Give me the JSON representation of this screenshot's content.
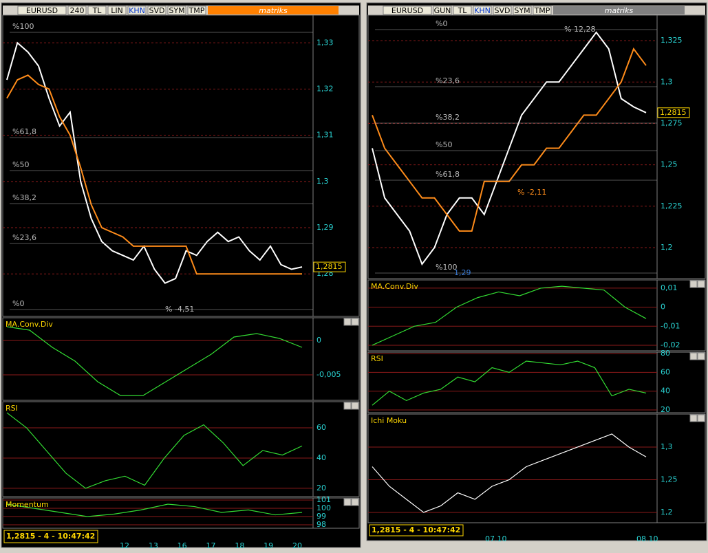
{
  "left": {
    "toolbar": {
      "symbol": "EURUSD",
      "period": "240",
      "buttons": [
        "TL",
        "LIN",
        "KHN",
        "SVD",
        "SYM",
        "TMP"
      ],
      "brand": "matriks"
    },
    "main": {
      "ylim": [
        1.2708,
        1.336
      ],
      "yticks": [
        {
          "value": 1.33,
          "label": "1,33"
        },
        {
          "value": 1.32,
          "label": "1,32"
        },
        {
          "value": 1.31,
          "label": "1,31"
        },
        {
          "value": 1.3,
          "label": "1,3"
        },
        {
          "value": 1.29,
          "label": "1,29"
        },
        {
          "value": 1.28,
          "label": "1,28"
        }
      ],
      "series": [
        {
          "color": "#ffffff",
          "values": [
            1.322,
            1.33,
            1.328,
            1.325,
            1.318,
            1.312,
            1.315,
            1.3,
            1.292,
            1.287,
            1.285,
            1.284,
            1.283,
            1.286,
            1.281,
            1.278,
            1.279,
            1.285,
            1.284,
            1.287,
            1.289,
            1.287,
            1.288,
            1.285,
            1.283,
            1.286,
            1.282,
            1.281,
            1.2815
          ]
        },
        {
          "color": "#ff8c1a",
          "values": [
            1.318,
            1.322,
            1.323,
            1.321,
            1.32,
            1.314,
            1.31,
            1.303,
            1.295,
            1.29,
            1.289,
            1.288,
            1.286,
            1.286,
            1.286,
            1.286,
            1.286,
            1.286,
            1.28,
            1.28,
            1.28,
            1.28,
            1.28,
            1.28,
            1.28,
            1.28,
            1.28,
            1.28,
            1.28
          ]
        }
      ],
      "price": "1,2815",
      "fib": [
        "%100",
        "%61,8",
        "%50",
        "%38,2",
        "%23,6",
        "%0"
      ],
      "annotation": "% -4,51"
    },
    "macd": {
      "title": "MA.Conv.Div",
      "ylim": [
        -0.0087,
        0.0033
      ],
      "yticks": [
        {
          "value": 0,
          "label": "0"
        },
        {
          "value": -0.005,
          "label": "-0,005"
        }
      ],
      "series": [
        {
          "color": "#33dd33",
          "values": [
            0.002,
            0.0015,
            -0.001,
            -0.003,
            -0.006,
            -0.008,
            -0.008,
            -0.006,
            -0.004,
            -0.002,
            0.0005,
            0.001,
            0.0003,
            -0.001
          ]
        }
      ]
    },
    "rsi": {
      "title": "RSI",
      "ylim": [
        14.5,
        77.3
      ],
      "yticks": [
        60,
        40,
        20
      ],
      "series": [
        {
          "color": "#33dd33",
          "values": [
            70,
            60,
            45,
            30,
            20,
            25,
            28,
            22,
            40,
            55,
            62,
            50,
            35,
            45,
            42,
            48
          ]
        }
      ]
    },
    "momentum": {
      "title": "Momentum",
      "ylim": [
        97.58,
        101.25
      ],
      "yticks": [
        101,
        100,
        99,
        98
      ],
      "series": [
        {
          "color": "#33dd33",
          "values": [
            100.5,
            100,
            99.5,
            99,
            99.3,
            99.8,
            100.5,
            100.2,
            99.5,
            99.8,
            99.2,
            99.5
          ]
        }
      ]
    },
    "status": "1,2815 - 4 - 10:47:42",
    "dates": [
      "12",
      "13",
      "16",
      "17",
      "18",
      "19",
      "20"
    ]
  },
  "right": {
    "toolbar": {
      "symbol": "EURUSD",
      "period": "GUN",
      "buttons": [
        "TL",
        "KHN",
        "SVD",
        "SYM",
        "TMP"
      ],
      "brand": "matriks"
    },
    "main": {
      "ylim": [
        1.1813,
        1.3404
      ],
      "yticks": [
        {
          "value": 1.325,
          "label": "1,325"
        },
        {
          "value": 1.3,
          "label": "1,3"
        },
        {
          "value": 1.275,
          "label": "1,275"
        },
        {
          "value": 1.25,
          "label": "1,25"
        },
        {
          "value": 1.225,
          "label": "1,225"
        },
        {
          "value": 1.2,
          "label": "1,2"
        }
      ],
      "series": [
        {
          "color": "#ffffff",
          "values": [
            1.26,
            1.23,
            1.22,
            1.21,
            1.19,
            1.2,
            1.22,
            1.23,
            1.23,
            1.22,
            1.24,
            1.26,
            1.28,
            1.29,
            1.3,
            1.3,
            1.31,
            1.32,
            1.33,
            1.32,
            1.29,
            1.285,
            1.2815
          ]
        },
        {
          "color": "#ff8c1a",
          "values": [
            1.28,
            1.26,
            1.25,
            1.24,
            1.23,
            1.23,
            1.22,
            1.21,
            1.21,
            1.24,
            1.24,
            1.24,
            1.25,
            1.25,
            1.26,
            1.26,
            1.27,
            1.28,
            1.28,
            1.29,
            1.3,
            1.32,
            1.31
          ]
        }
      ],
      "price": "1,2815",
      "fib": [
        "%0",
        "%23,6",
        "%38,2",
        "%50",
        "%61,8",
        "%100"
      ],
      "annotation": "% 12,28",
      "annotation2": "% -2,11",
      "low": "1,29"
    },
    "macd": {
      "title": "MA.Conv.Div",
      "ylim": [
        -0.0229,
        0.0143
      ],
      "yticks": [
        {
          "value": 0.01,
          "label": "0,01"
        },
        {
          "value": 0,
          "label": "0"
        },
        {
          "value": -0.01,
          "label": "-0,01"
        },
        {
          "value": -0.02,
          "label": "-0,02"
        }
      ],
      "series": [
        {
          "color": "#33dd33",
          "values": [
            -0.02,
            -0.015,
            -0.01,
            -0.008,
            0,
            0.005,
            0.008,
            0.006,
            0.01,
            0.011,
            0.01,
            0.009,
            0,
            -0.006
          ]
        }
      ]
    },
    "rsi": {
      "title": "RSI",
      "ylim": [
        17.1,
        81.5
      ],
      "yticks": [
        80,
        60,
        40,
        20
      ],
      "series": [
        {
          "color": "#33dd33",
          "values": [
            25,
            40,
            30,
            38,
            42,
            55,
            50,
            65,
            60,
            72,
            70,
            68,
            72,
            65,
            35,
            42,
            38
          ]
        }
      ]
    },
    "ichi": {
      "title": "Ichi Moku",
      "ylim": [
        1.1842,
        1.3505
      ],
      "yticks": [
        {
          "value": 1.3,
          "label": "1,3"
        },
        {
          "value": 1.25,
          "label": "1,25"
        },
        {
          "value": 1.2,
          "label": "1,2"
        }
      ],
      "series": [
        {
          "color": "#ffffff",
          "values": [
            1.27,
            1.24,
            1.22,
            1.2,
            1.21,
            1.23,
            1.22,
            1.24,
            1.25,
            1.27,
            1.28,
            1.29,
            1.3,
            1.31,
            1.32,
            1.3,
            1.285
          ]
        }
      ]
    },
    "status": "1,2815 - 4 - 10:47:42",
    "dates": [
      "07.10",
      "08.10"
    ]
  }
}
